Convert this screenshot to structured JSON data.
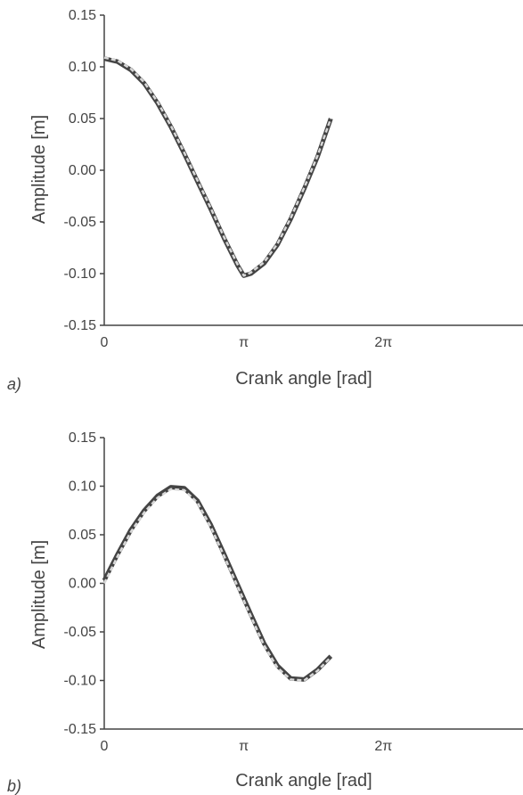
{
  "chart_data": [
    {
      "type": "line",
      "panel_label": "a)",
      "xlabel": "Crank angle [rad]",
      "ylabel": "Amplitude [m]",
      "xlim": [
        0,
        9.42478
      ],
      "ylim": [
        -0.15,
        0.15
      ],
      "x_ticks": [
        {
          "value": 0,
          "label": "0"
        },
        {
          "value": 3.14159,
          "label": "π"
        },
        {
          "value": 6.28319,
          "label": "2π"
        }
      ],
      "y_ticks": [
        {
          "value": 0.15,
          "label": "0.15"
        },
        {
          "value": 0.1,
          "label": "0.10"
        },
        {
          "value": 0.05,
          "label": "0.05"
        },
        {
          "value": 0.0,
          "label": "0.00"
        },
        {
          "value": -0.05,
          "label": "-0.05"
        },
        {
          "value": -0.1,
          "label": "-0.10"
        },
        {
          "value": -0.15,
          "label": "-0.15"
        }
      ],
      "grid": false,
      "series": [
        {
          "color": "#444444",
          "style": "solid",
          "x": [
            0.0,
            0.3,
            0.6,
            0.9,
            1.2,
            1.5,
            1.8,
            2.1,
            2.4,
            2.7,
            3.0,
            3.14,
            3.3,
            3.6,
            3.9,
            4.2,
            4.5,
            4.8,
            5.1
          ],
          "y": [
            0.108,
            0.105,
            0.097,
            0.084,
            0.065,
            0.042,
            0.016,
            -0.011,
            -0.038,
            -0.066,
            -0.092,
            -0.102,
            -0.1,
            -0.09,
            -0.072,
            -0.047,
            -0.018,
            0.013,
            0.05
          ]
        },
        {
          "color": "#d8d8d8",
          "style": "dashed",
          "x": [
            0.0,
            0.3,
            0.6,
            0.9,
            1.2,
            1.5,
            1.8,
            2.1,
            2.4,
            2.7,
            3.0,
            3.14,
            3.3,
            3.6,
            3.9,
            4.2,
            4.5,
            4.8,
            5.1
          ],
          "y": [
            0.109,
            0.106,
            0.098,
            0.085,
            0.066,
            0.043,
            0.017,
            -0.01,
            -0.037,
            -0.065,
            -0.091,
            -0.102,
            -0.099,
            -0.089,
            -0.071,
            -0.046,
            -0.017,
            0.014,
            0.05
          ]
        }
      ]
    },
    {
      "type": "line",
      "panel_label": "b)",
      "xlabel": "Crank angle [rad]",
      "ylabel": "Amplitude [m]",
      "xlim": [
        0,
        9.42478
      ],
      "ylim": [
        -0.15,
        0.15
      ],
      "x_ticks": [
        {
          "value": 0,
          "label": "0"
        },
        {
          "value": 3.14159,
          "label": "π"
        },
        {
          "value": 6.28319,
          "label": "2π"
        }
      ],
      "y_ticks": [
        {
          "value": 0.15,
          "label": "0.15"
        },
        {
          "value": 0.1,
          "label": "0.10"
        },
        {
          "value": 0.05,
          "label": "0.05"
        },
        {
          "value": 0.0,
          "label": "0.00"
        },
        {
          "value": -0.05,
          "label": "-0.05"
        },
        {
          "value": -0.1,
          "label": "-0.10"
        },
        {
          "value": -0.15,
          "label": "-0.15"
        }
      ],
      "grid": false,
      "series": [
        {
          "color": "#444444",
          "style": "solid",
          "x": [
            0.0,
            0.3,
            0.6,
            0.9,
            1.2,
            1.5,
            1.8,
            2.1,
            2.4,
            2.7,
            3.0,
            3.3,
            3.6,
            3.9,
            4.2,
            4.5,
            4.8,
            5.1
          ],
          "y": [
            0.003,
            0.03,
            0.055,
            0.075,
            0.09,
            0.099,
            0.098,
            0.085,
            0.06,
            0.03,
            -0.001,
            -0.032,
            -0.062,
            -0.085,
            -0.098,
            -0.099,
            -0.089,
            -0.075
          ]
        },
        {
          "color": "#d8d8d8",
          "style": "dashed",
          "x": [
            0.0,
            0.3,
            0.6,
            0.9,
            1.2,
            1.5,
            1.8,
            2.1,
            2.4,
            2.7,
            3.0,
            3.3,
            3.6,
            3.9,
            4.2,
            4.5,
            4.8,
            5.1
          ],
          "y": [
            0.0,
            0.028,
            0.053,
            0.073,
            0.088,
            0.097,
            0.096,
            0.083,
            0.058,
            0.028,
            -0.003,
            -0.034,
            -0.064,
            -0.087,
            -0.099,
            -0.1,
            -0.09,
            -0.076
          ]
        }
      ]
    }
  ]
}
